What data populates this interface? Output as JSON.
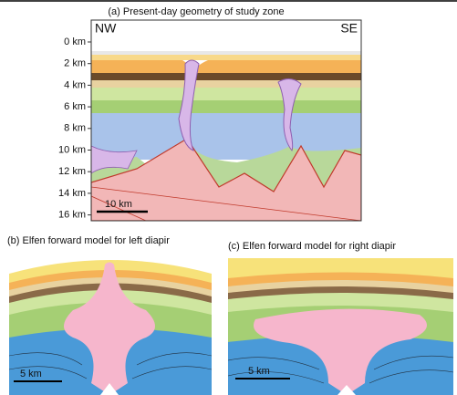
{
  "panel_a": {
    "title": "(a) Present-day geometry of study zone",
    "left_label": "NW",
    "right_label": "SE",
    "depth_ticks": [
      "0 km",
      "2 km",
      "4 km",
      "6 km",
      "8 km",
      "10 km",
      "12 km",
      "14 km",
      "16 km"
    ],
    "scale_bar": "10 km"
  },
  "panel_b": {
    "title": "(b) Elfen forward model for left diapir",
    "scale_bar": "5 km"
  },
  "panel_c": {
    "title": "(c) Elfen forward model for right diapir",
    "scale_bar": "5 km"
  }
}
